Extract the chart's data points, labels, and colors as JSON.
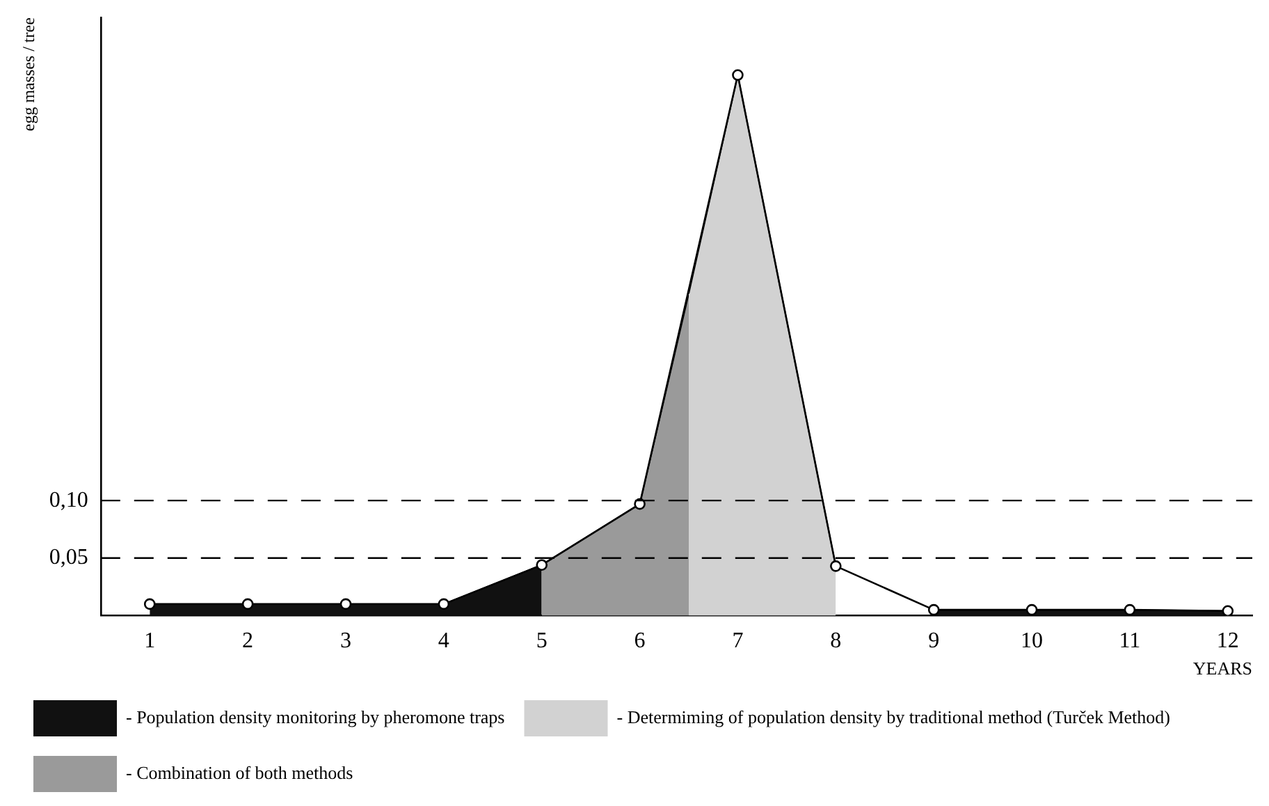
{
  "chart_data": {
    "type": "area",
    "xlabel": "YEARS",
    "ylabel": "egg masses / tree",
    "xlim": [
      0.5,
      12.25
    ],
    "xticks": [
      1,
      2,
      3,
      4,
      5,
      6,
      7,
      8,
      9,
      10,
      11,
      12
    ],
    "ylim": [
      0,
      0.52
    ],
    "yticks": [
      {
        "value": 0.05,
        "label": "0,05"
      },
      {
        "value": 0.1,
        "label": "0,10"
      }
    ],
    "grid": false,
    "legend": "bottom",
    "ref_lines": [
      {
        "axis": "y",
        "value": 0.05,
        "line_style": "dashed",
        "color": "#000000"
      },
      {
        "axis": "y",
        "value": 0.1,
        "line_style": "dashed",
        "color": "#000000"
      }
    ],
    "series": [
      {
        "name": "- Population density monitoring by pheromone traps",
        "color": "#111111",
        "x": [
          1,
          2,
          3,
          4,
          5,
          7,
          9,
          10,
          11,
          12
        ],
        "values": [
          0.01,
          0.01,
          0.01,
          0.01,
          0.044,
          null,
          0.005,
          0.005,
          0.005,
          0.004
        ]
      },
      {
        "name": "- Determiming of population density by traditional method (Turček Method)",
        "color": "#d2d2d2",
        "x": [
          6.5,
          7,
          8
        ],
        "values": [
          0.28,
          0.47,
          0.043
        ]
      },
      {
        "name": "- Combination of both methods",
        "color": "#9a9a9a",
        "x": [
          5,
          6,
          6.5
        ],
        "values": [
          0.044,
          0.097,
          0.28
        ]
      },
      {
        "type": "line",
        "color": "#000000",
        "marker": "circle",
        "x": [
          1,
          2,
          3,
          4,
          5,
          6,
          7,
          8,
          9,
          10,
          11,
          12
        ],
        "values": [
          0.01,
          0.01,
          0.01,
          0.01,
          0.044,
          0.097,
          0.47,
          0.043,
          0.005,
          0.005,
          0.005,
          0.004
        ]
      }
    ]
  }
}
